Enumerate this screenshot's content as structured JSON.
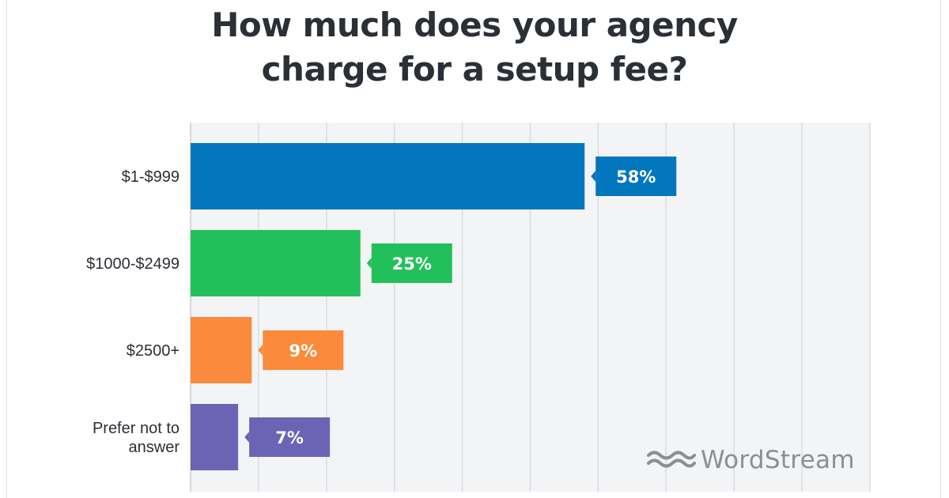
{
  "title_lines": [
    "How much does your agency",
    "charge for a setup fee?"
  ],
  "chart_data": {
    "type": "bar",
    "orientation": "horizontal",
    "title": "How much does your agency charge for a setup fee?",
    "categories": [
      [
        "$1-$999"
      ],
      [
        "$1000-$2499"
      ],
      [
        "$2500+"
      ],
      [
        "Prefer not to",
        "answer"
      ]
    ],
    "values": [
      58,
      25,
      9,
      7
    ],
    "data_labels": [
      "58%",
      "25%",
      "9%",
      "7%"
    ],
    "colors": [
      "#0277bd",
      "#22c05a",
      "#fb8a3c",
      "#6b64b5"
    ],
    "xlim": [
      0,
      100
    ],
    "grid": true,
    "legend": "none"
  },
  "brand": {
    "name": "WordStream",
    "icon": "wordstream-waves-icon",
    "color": "#8a8f96"
  }
}
